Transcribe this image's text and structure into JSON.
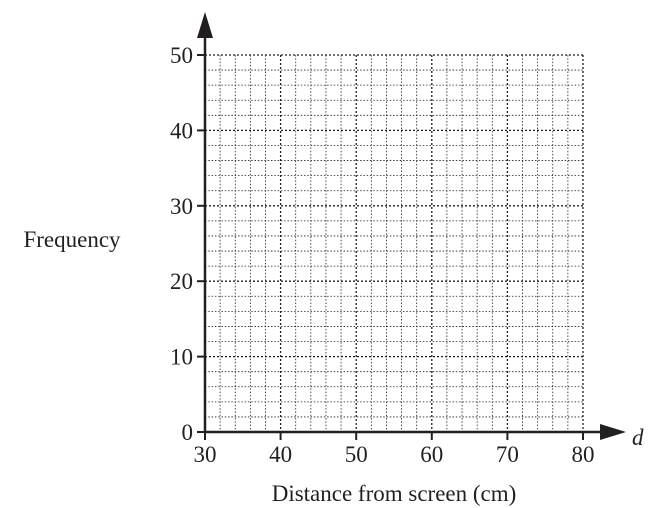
{
  "chart_data": {
    "type": "bar",
    "title": "",
    "xlabel": "Distance from screen (cm)",
    "ylabel": "Frequency",
    "x_variable": "d",
    "xlim": [
      30,
      80
    ],
    "ylim": [
      0,
      50
    ],
    "x_ticks": [
      "30",
      "40",
      "50",
      "60",
      "70",
      "80"
    ],
    "y_ticks": [
      "0",
      "10",
      "20",
      "30",
      "40",
      "50"
    ],
    "grid": true,
    "values": [],
    "colors": {
      "axis": "#231f20",
      "grid": "#231f20"
    }
  }
}
